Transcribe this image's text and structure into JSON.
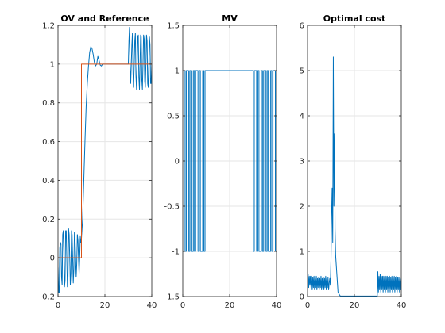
{
  "figure": {
    "background": "#ffffff",
    "axes_color": "#262626",
    "grid_color": "#e6e6e6"
  },
  "chart_data": [
    {
      "type": "line",
      "title": "OV and Reference",
      "xlabel": "",
      "ylabel": "",
      "xlim": [
        0,
        40
      ],
      "ylim": [
        -0.2,
        1.2
      ],
      "xticks": [
        0,
        20,
        40
      ],
      "yticks": [
        -0.2,
        0,
        0.2,
        0.4,
        0.6,
        0.8,
        1,
        1.2
      ],
      "ytick_labels": [
        "-0.2",
        "0",
        "0.2",
        "0.4",
        "0.6",
        "0.8",
        "1",
        "1.2"
      ],
      "grid": true,
      "series": [
        {
          "color": "#0072bd",
          "x": [
            0,
            0.25,
            0.5,
            0.75,
            1.0,
            1.25,
            1.5,
            1.75,
            2.0,
            2.25,
            2.5,
            2.75,
            3.0,
            3.25,
            3.5,
            3.75,
            4.0,
            4.25,
            4.5,
            4.75,
            5.0,
            5.25,
            5.5,
            5.75,
            6.0,
            6.25,
            6.5,
            6.75,
            7.0,
            7.25,
            7.5,
            7.75,
            8.0,
            8.25,
            8.5,
            8.75,
            9.0,
            9.25,
            9.5,
            9.75,
            10.0,
            10.5,
            11.0,
            11.5,
            12.0,
            12.5,
            13.0,
            13.5,
            14.0,
            14.5,
            15.0,
            15.5,
            16.0,
            16.5,
            17.0,
            17.5,
            18.0,
            18.5,
            19.0,
            20.0,
            22.0,
            24.0,
            26.0,
            28.0,
            30.0,
            30.25,
            30.5,
            30.75,
            31.0,
            31.25,
            31.5,
            31.75,
            32.0,
            32.25,
            32.5,
            32.75,
            33.0,
            33.25,
            33.5,
            33.75,
            34.0,
            34.25,
            34.5,
            34.75,
            35.0,
            35.25,
            35.5,
            35.75,
            36.0,
            36.25,
            36.5,
            36.75,
            37.0,
            37.25,
            37.5,
            37.75,
            38.0,
            38.25,
            38.5,
            38.75,
            39.0,
            39.25,
            39.5,
            39.75,
            40.0
          ],
          "y": [
            -0.05,
            -0.18,
            -0.18,
            0.05,
            0.08,
            0.07,
            -0.1,
            -0.14,
            0.12,
            0.14,
            0.04,
            -0.15,
            -0.12,
            0.14,
            0.14,
            0.0,
            -0.15,
            -0.1,
            0.15,
            0.12,
            0.0,
            -0.14,
            -0.08,
            0.14,
            0.12,
            0.0,
            -0.13,
            -0.06,
            0.13,
            0.1,
            0.0,
            -0.1,
            -0.03,
            0.12,
            0.09,
            0.0,
            -0.08,
            0.0,
            0.11,
            0.08,
            0.1,
            0.2,
            0.4,
            0.6,
            0.78,
            0.9,
            0.99,
            1.06,
            1.09,
            1.08,
            1.05,
            1.01,
            0.99,
            1.0,
            1.04,
            1.02,
            0.995,
            0.99,
            1.0,
            1.0,
            1.0,
            1.0,
            1.0,
            1.0,
            1.0,
            1.12,
            1.19,
            0.98,
            0.9,
            1.0,
            1.1,
            1.16,
            0.95,
            0.88,
            1.0,
            1.12,
            1.16,
            0.94,
            0.87,
            1.0,
            1.14,
            1.15,
            0.93,
            0.87,
            1.0,
            1.15,
            1.14,
            0.92,
            0.87,
            1.0,
            1.15,
            1.13,
            0.91,
            0.88,
            1.0,
            1.15,
            1.12,
            0.9,
            0.88,
            1.0,
            1.14,
            1.1,
            0.9,
            0.9,
            1.0
          ]
        },
        {
          "color": "#d95319",
          "x": [
            0,
            10,
            10,
            40
          ],
          "y": [
            0,
            0,
            1,
            1
          ]
        }
      ]
    },
    {
      "type": "line",
      "title": "MV",
      "xlabel": "",
      "ylabel": "",
      "xlim": [
        0,
        40
      ],
      "ylim": [
        -1.5,
        1.5
      ],
      "xticks": [
        0,
        20,
        40
      ],
      "yticks": [
        -1.5,
        -1,
        -0.5,
        0,
        0.5,
        1,
        1.5
      ],
      "ytick_labels": [
        "-1.5",
        "-1",
        "-0.5",
        "0",
        "0.5",
        "1",
        "1.5"
      ],
      "grid": true,
      "series": [
        {
          "color": "#0072bd",
          "x": [
            0,
            0.5,
            0.5,
            1.0,
            1.0,
            1.5,
            1.5,
            2.5,
            2.5,
            3.0,
            3.0,
            3.5,
            3.5,
            4.5,
            4.5,
            5.0,
            5.0,
            5.5,
            5.5,
            6.5,
            6.5,
            7.0,
            7.0,
            7.5,
            7.5,
            8.5,
            8.5,
            9.0,
            9.0,
            9.5,
            9.5,
            10.0,
            10.0,
            30.0,
            30.0,
            30.5,
            30.5,
            31.5,
            31.5,
            32.0,
            32.0,
            32.5,
            32.5,
            33.5,
            33.5,
            34.0,
            34.0,
            34.5,
            34.5,
            35.5,
            35.5,
            36.0,
            36.0,
            36.5,
            36.5,
            37.5,
            37.5,
            38.0,
            38.0,
            38.5,
            38.5,
            39.5,
            39.5,
            40.0
          ],
          "y": [
            -1,
            -1,
            1,
            1,
            -1,
            -1,
            1,
            1,
            -1,
            -1,
            1,
            1,
            -1,
            -1,
            1,
            1,
            -1,
            -1,
            1,
            1,
            -1,
            -1,
            1,
            1,
            -1,
            -1,
            1,
            1,
            -1,
            -1,
            1,
            1,
            1,
            1,
            -1,
            -1,
            1,
            1,
            -1,
            -1,
            1,
            1,
            -1,
            -1,
            1,
            1,
            -1,
            -1,
            1,
            1,
            -1,
            -1,
            1,
            1,
            -1,
            -1,
            1,
            1,
            -1,
            -1,
            1,
            1,
            -1,
            -1
          ]
        }
      ]
    },
    {
      "type": "line",
      "title": "Optimal cost",
      "xlabel": "",
      "ylabel": "",
      "xlim": [
        0,
        40
      ],
      "ylim": [
        0,
        6
      ],
      "xticks": [
        0,
        20,
        40
      ],
      "yticks": [
        0,
        1,
        2,
        3,
        4,
        5,
        6
      ],
      "ytick_labels": [
        "0",
        "1",
        "2",
        "3",
        "4",
        "5",
        "6"
      ],
      "grid": true,
      "series": [
        {
          "color": "#0072bd",
          "x": [
            0,
            0.25,
            0.5,
            0.75,
            1.0,
            1.25,
            1.5,
            1.75,
            2.0,
            2.25,
            2.5,
            2.75,
            3.0,
            3.25,
            3.5,
            3.75,
            4.0,
            4.25,
            4.5,
            4.75,
            5.0,
            5.25,
            5.5,
            5.75,
            6.0,
            6.25,
            6.5,
            6.75,
            7.0,
            7.25,
            7.5,
            7.75,
            8.0,
            8.25,
            8.5,
            8.75,
            9.0,
            9.25,
            9.5,
            9.75,
            10.0,
            10.25,
            10.5,
            10.75,
            11.0,
            11.25,
            11.5,
            11.75,
            12.0,
            12.5,
            13.0,
            13.5,
            14.0,
            15.0,
            16.0,
            18.0,
            20.0,
            22.0,
            24.0,
            26.0,
            28.0,
            29.75,
            30.0,
            30.25,
            30.5,
            30.75,
            31.0,
            31.25,
            31.5,
            31.75,
            32.0,
            32.25,
            32.5,
            32.75,
            33.0,
            33.25,
            33.5,
            33.75,
            34.0,
            34.25,
            34.5,
            34.75,
            35.0,
            35.25,
            35.5,
            35.75,
            36.0,
            36.25,
            36.5,
            36.75,
            37.0,
            37.25,
            37.5,
            37.75,
            38.0,
            38.25,
            38.5,
            38.75,
            39.0,
            39.25,
            39.5,
            39.75,
            40.0
          ],
          "y": [
            0.1,
            0.5,
            0.2,
            0.45,
            0.25,
            0.45,
            0.2,
            0.45,
            0.15,
            0.42,
            0.2,
            0.45,
            0.15,
            0.4,
            0.2,
            0.45,
            0.15,
            0.4,
            0.2,
            0.42,
            0.15,
            0.4,
            0.2,
            0.45,
            0.15,
            0.4,
            0.2,
            0.42,
            0.15,
            0.4,
            0.2,
            0.45,
            0.15,
            0.4,
            0.2,
            0.42,
            0.15,
            0.3,
            0.4,
            0.25,
            0.8,
            1.8,
            2.4,
            1.2,
            5.3,
            2.0,
            3.6,
            1.5,
            0.9,
            0.5,
            0.1,
            0.05,
            0.01,
            0.01,
            0.01,
            0.01,
            0.01,
            0.01,
            0.01,
            0.01,
            0.01,
            0.01,
            0.55,
            0.1,
            0.45,
            0.15,
            0.5,
            0.1,
            0.45,
            0.15,
            0.45,
            0.1,
            0.45,
            0.15,
            0.45,
            0.1,
            0.45,
            0.15,
            0.45,
            0.1,
            0.42,
            0.15,
            0.45,
            0.1,
            0.42,
            0.15,
            0.45,
            0.1,
            0.42,
            0.15,
            0.45,
            0.1,
            0.42,
            0.15,
            0.45,
            0.1,
            0.42,
            0.15,
            0.42,
            0.1,
            0.42,
            0.15,
            0.4
          ]
        }
      ]
    }
  ]
}
